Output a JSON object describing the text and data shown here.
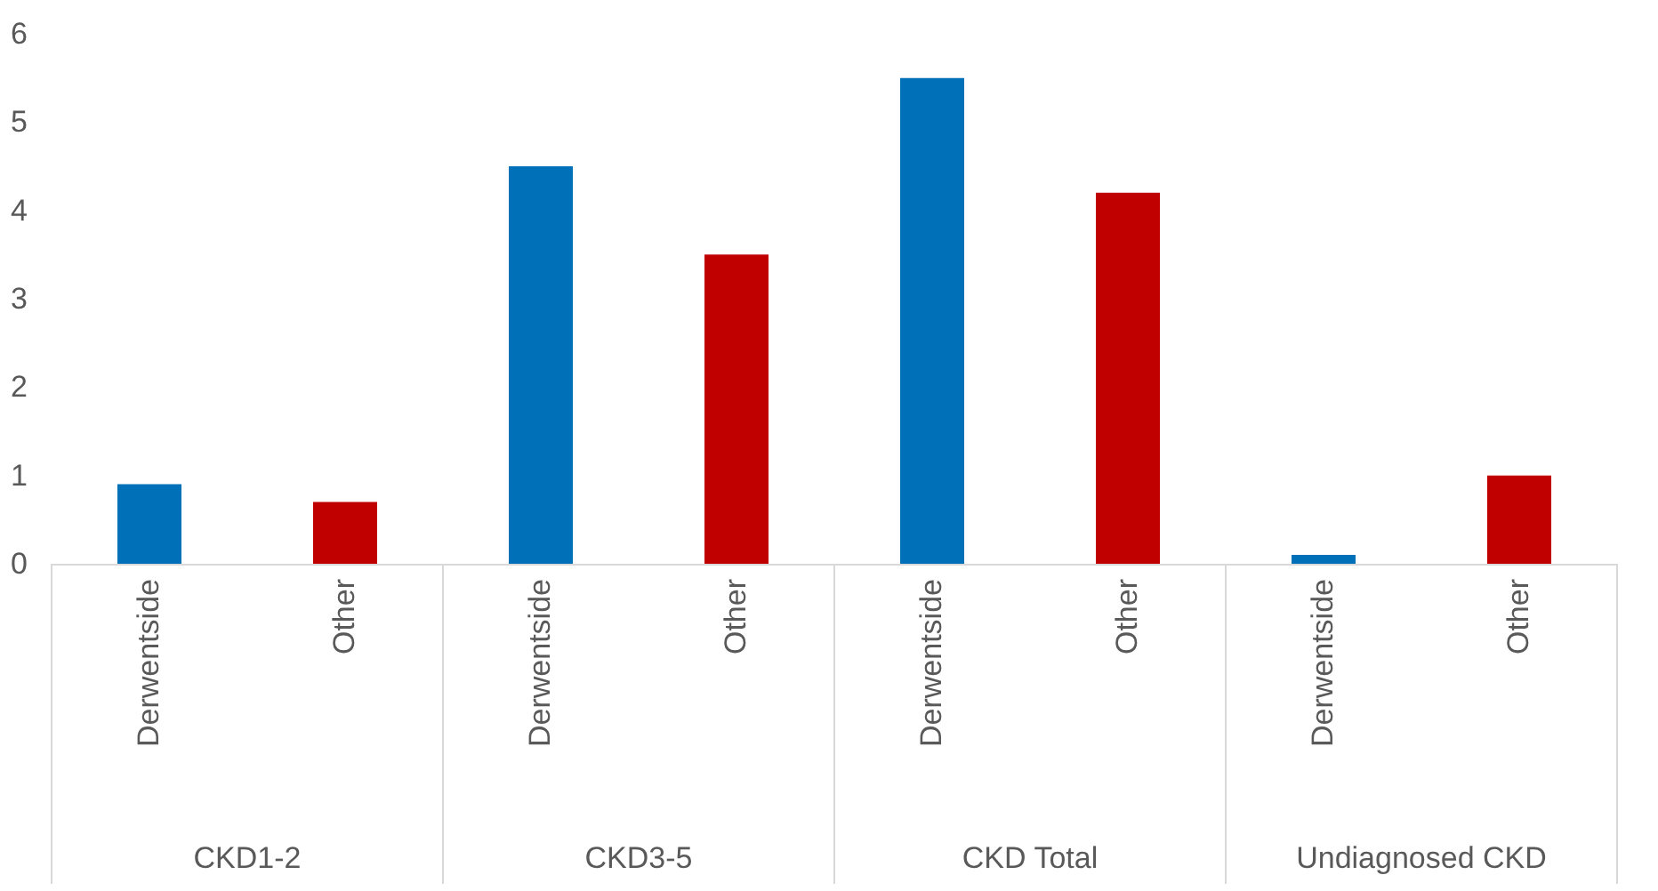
{
  "chart_data": {
    "type": "bar",
    "categories": [
      "Derwentside",
      "Other",
      "Derwentside",
      "Other",
      "Derwentside",
      "Other",
      "Derwentside",
      "Other"
    ],
    "values": [
      0.9,
      0.7,
      4.5,
      3.5,
      5.5,
      4.2,
      0.1,
      1.0
    ],
    "colors": [
      "#0070b8",
      "#c00000",
      "#0070b8",
      "#c00000",
      "#0070b8",
      "#c00000",
      "#0070b8",
      "#c00000"
    ],
    "annotations": [
      "CKD1-2",
      "CKD3-5",
      "CKD Total",
      "Undiagnosed CKD"
    ],
    "ylim": [
      0,
      6
    ],
    "yticks": [
      0,
      1,
      2,
      3,
      4,
      5,
      6
    ],
    "grid": false
  }
}
